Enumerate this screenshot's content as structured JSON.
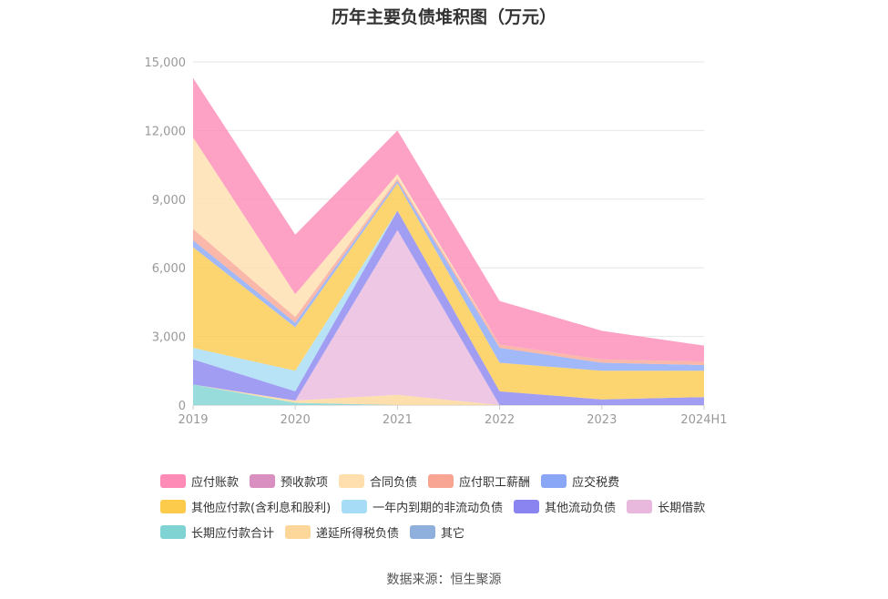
{
  "chart_data": {
    "type": "area",
    "stacked": true,
    "title": "历年主要负债堆积图（万元）",
    "categories": [
      "2019",
      "2020",
      "2021",
      "2022",
      "2023",
      "2024H1"
    ],
    "y_ticks": [
      "0",
      "3,000",
      "6,000",
      "9,000",
      "12,000",
      "15,000"
    ],
    "ylim": [
      0,
      15000
    ],
    "grid": true,
    "legend_position": "bottom",
    "series": [
      {
        "name": "长期应付款合计",
        "color": "#7fd3d3",
        "values": [
          900,
          100,
          0,
          0,
          0,
          0
        ]
      },
      {
        "name": "递延所得税负债",
        "color": "#fdd79a",
        "values": [
          0,
          100,
          450,
          0,
          0,
          0
        ]
      },
      {
        "name": "其它",
        "color": "#8fb0dd",
        "values": [
          0,
          0,
          0,
          0,
          0,
          0
        ]
      },
      {
        "name": "长期借款",
        "color": "#e8b9dc",
        "values": [
          0,
          0,
          7200,
          0,
          0,
          0
        ]
      },
      {
        "name": "其他流动负债",
        "color": "#8a84f0",
        "values": [
          1100,
          400,
          850,
          600,
          250,
          350
        ]
      },
      {
        "name": "一年内到期的非流动负债",
        "color": "#a6dcf5",
        "values": [
          500,
          900,
          0,
          0,
          0,
          0
        ]
      },
      {
        "name": "其他应付款(含利息和股利)",
        "color": "#fdcb4c",
        "values": [
          4400,
          1900,
          1200,
          1250,
          1250,
          1150
        ]
      },
      {
        "name": "应交税费",
        "color": "#89a6f7",
        "values": [
          300,
          200,
          100,
          650,
          350,
          250
        ]
      },
      {
        "name": "应付职工薪酬",
        "color": "#f8a693",
        "values": [
          500,
          250,
          100,
          150,
          150,
          150
        ]
      },
      {
        "name": "合同负债",
        "color": "#fedfad",
        "values": [
          4000,
          1000,
          200,
          0,
          0,
          0
        ]
      },
      {
        "name": "预收款项",
        "color": "#d98fc0",
        "values": [
          0,
          0,
          0,
          0,
          0,
          0
        ]
      },
      {
        "name": "应付账款",
        "color": "#fd8bb5",
        "values": [
          2600,
          2600,
          1900,
          1900,
          1250,
          700
        ]
      }
    ],
    "legend_order": [
      "应付账款",
      "预收款项",
      "合同负债",
      "应付职工薪酬",
      "应交税费",
      "其他应付款(含利息和股利)",
      "一年内到期的非流动负债",
      "其他流动负债",
      "长期借款",
      "长期应付款合计",
      "递延所得税负债",
      "其它"
    ]
  },
  "source": "数据来源：恒生聚源"
}
